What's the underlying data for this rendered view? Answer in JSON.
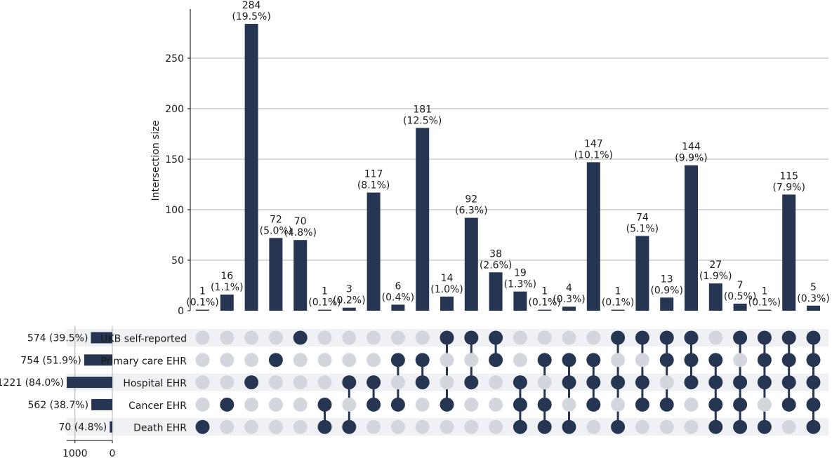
{
  "chart_data": {
    "type": "upset",
    "ylabel": "Intersection size",
    "yticks": [
      0,
      50,
      100,
      150,
      200,
      250
    ],
    "ylim": [
      0,
      300
    ],
    "grid": true,
    "set_size_ticks": [
      "1000",
      "0"
    ],
    "set_size_lim": [
      0,
      1220
    ],
    "colors": {
      "bar": "#263552",
      "active_dot": "#263552",
      "inactive_dot": "#d3d6dc",
      "row_band": "#f0f1f4",
      "grid": "#b0b0b0"
    },
    "sets": [
      {
        "name": "UKB self-reported",
        "size": 574,
        "size_label": "574 (39.5%)"
      },
      {
        "name": "Primary care EHR",
        "size": 754,
        "size_label": "754 (51.9%)"
      },
      {
        "name": "Hospital EHR",
        "size": 1221,
        "size_label": "1221 (84.0%)"
      },
      {
        "name": "Cancer EHR",
        "size": 562,
        "size_label": "562 (38.7%)"
      },
      {
        "name": "Death EHR",
        "size": 70,
        "size_label": "70 (4.8%)"
      }
    ],
    "intersections": [
      {
        "value": 1,
        "pct": "(0.1%)",
        "members": [
          4
        ]
      },
      {
        "value": 16,
        "pct": "(1.1%)",
        "members": [
          3
        ]
      },
      {
        "value": 284,
        "pct": "(19.5%)",
        "members": [
          2
        ]
      },
      {
        "value": 72,
        "pct": "(5.0%)",
        "members": [
          1
        ]
      },
      {
        "value": 70,
        "pct": "(4.8%)",
        "members": [
          0
        ]
      },
      {
        "value": 1,
        "pct": "(0.1%)",
        "members": [
          3,
          4
        ]
      },
      {
        "value": 3,
        "pct": "(0.2%)",
        "members": [
          2,
          4
        ]
      },
      {
        "value": 117,
        "pct": "(8.1%)",
        "members": [
          2,
          3
        ]
      },
      {
        "value": 6,
        "pct": "(0.4%)",
        "members": [
          1,
          3
        ]
      },
      {
        "value": 181,
        "pct": "(12.5%)",
        "members": [
          1,
          2
        ]
      },
      {
        "value": 14,
        "pct": "(1.0%)",
        "members": [
          0,
          3
        ]
      },
      {
        "value": 92,
        "pct": "(6.3%)",
        "members": [
          0,
          2
        ]
      },
      {
        "value": 38,
        "pct": "(2.6%)",
        "members": [
          0,
          1
        ]
      },
      {
        "value": 19,
        "pct": "(1.3%)",
        "members": [
          2,
          3,
          4
        ]
      },
      {
        "value": 1,
        "pct": "(0.1%)",
        "members": [
          1,
          3,
          4
        ]
      },
      {
        "value": 4,
        "pct": "(0.3%)",
        "members": [
          1,
          2,
          4
        ]
      },
      {
        "value": 147,
        "pct": "(10.1%)",
        "members": [
          1,
          2,
          3
        ]
      },
      {
        "value": 1,
        "pct": "(0.1%)",
        "members": [
          0,
          2,
          4
        ]
      },
      {
        "value": 74,
        "pct": "(5.1%)",
        "members": [
          0,
          2,
          3
        ]
      },
      {
        "value": 13,
        "pct": "(0.9%)",
        "members": [
          0,
          1,
          3
        ]
      },
      {
        "value": 144,
        "pct": "(9.9%)",
        "members": [
          0,
          1,
          2
        ]
      },
      {
        "value": 27,
        "pct": "(1.9%)",
        "members": [
          1,
          2,
          3,
          4
        ]
      },
      {
        "value": 7,
        "pct": "(0.5%)",
        "members": [
          0,
          2,
          3,
          4
        ]
      },
      {
        "value": 1,
        "pct": "(0.1%)",
        "members": [
          0,
          1,
          2,
          4
        ]
      },
      {
        "value": 115,
        "pct": "(7.9%)",
        "members": [
          0,
          1,
          2,
          3
        ]
      },
      {
        "value": 5,
        "pct": "(0.3%)",
        "members": [
          0,
          1,
          2,
          3,
          4
        ]
      }
    ]
  }
}
